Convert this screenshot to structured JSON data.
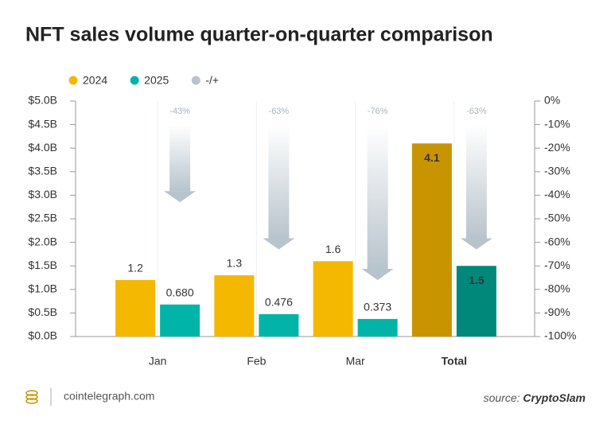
{
  "chart_data": {
    "type": "bar",
    "title": "NFT sales volume quarter-on-quarter comparison",
    "categories": [
      "Jan",
      "Feb",
      "Mar",
      "Total"
    ],
    "series": [
      {
        "name": "2024",
        "color": "#f5b800",
        "colors": [
          "#f5b800",
          "#f5b800",
          "#f5b800",
          "#c89400"
        ],
        "values": [
          1.2,
          1.3,
          1.6,
          4.1
        ]
      },
      {
        "name": "2025",
        "color": "#00b5a8",
        "colors": [
          "#00b5a8",
          "#00b5a8",
          "#00b5a8",
          "#00897b"
        ],
        "values": [
          0.68,
          0.476,
          0.373,
          1.5
        ],
        "value_labels": [
          "0.680",
          "0.476",
          "0.373",
          "1.5"
        ]
      },
      {
        "name": "-/+",
        "color": "#b8c4cc",
        "axis": "y2",
        "values": [
          -43,
          -63,
          -76,
          -63
        ],
        "value_labels": [
          "-43%",
          "-63%",
          "-76%",
          "-63%"
        ]
      }
    ],
    "ylim": [
      0,
      5
    ],
    "yticks": [
      {
        "value": 0,
        "label": "$0.0B"
      },
      {
        "value": 0.5,
        "label": "$0.5B"
      },
      {
        "value": 1,
        "label": "$1.0B"
      },
      {
        "value": 1.5,
        "label": "$1.5B"
      },
      {
        "value": 2,
        "label": "$2.0B"
      },
      {
        "value": 2.5,
        "label": "$2.5B"
      },
      {
        "value": 3,
        "label": "$3.0B"
      },
      {
        "value": 3.5,
        "label": "$3.5B"
      },
      {
        "value": 4,
        "label": "$4.0B"
      },
      {
        "value": 4.5,
        "label": "$4.5B"
      },
      {
        "value": 5,
        "label": "$5.0B"
      }
    ],
    "y2lim": [
      -100,
      0
    ],
    "y2ticks": [
      {
        "value": 0,
        "label": "0%"
      },
      {
        "value": -10,
        "label": "-10%"
      },
      {
        "value": -20,
        "label": "-20%"
      },
      {
        "value": -30,
        "label": "-30%"
      },
      {
        "value": -40,
        "label": "-40%"
      },
      {
        "value": -50,
        "label": "-50%"
      },
      {
        "value": -60,
        "label": "-60%"
      },
      {
        "value": -70,
        "label": "-70%"
      },
      {
        "value": -80,
        "label": "-80%"
      },
      {
        "value": -90,
        "label": "-90%"
      },
      {
        "value": -100,
        "label": "-100%"
      }
    ],
    "grid": true
  },
  "footer": {
    "site": "cointelegraph.com",
    "source_label": "source:",
    "source": "CryptoSlam"
  }
}
